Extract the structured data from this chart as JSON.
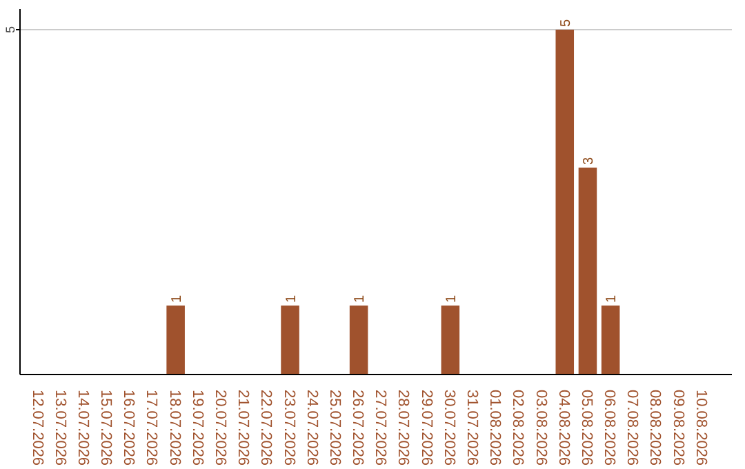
{
  "chart_data": {
    "type": "bar",
    "categories": [
      "12.07.2026",
      "13.07.2026",
      "14.07.2026",
      "15.07.2026",
      "16.07.2026",
      "17.07.2026",
      "18.07.2026",
      "19.07.2026",
      "20.07.2026",
      "21.07.2026",
      "22.07.2026",
      "23.07.2026",
      "24.07.2026",
      "25.07.2026",
      "26.07.2026",
      "27.07.2026",
      "28.07.2026",
      "29.07.2026",
      "30.07.2026",
      "31.07.2026",
      "01.08.2026",
      "02.08.2026",
      "03.08.2026",
      "04.08.2026",
      "05.08.2026",
      "06.08.2026",
      "07.08.2026",
      "08.08.2026",
      "09.08.2026",
      "10.08.2026"
    ],
    "values": [
      0,
      0,
      0,
      0,
      0,
      0,
      1,
      0,
      0,
      0,
      0,
      1,
      0,
      0,
      1,
      0,
      0,
      0,
      1,
      0,
      0,
      0,
      0,
      5,
      3,
      1,
      0,
      0,
      0,
      0
    ],
    "value_labels": [
      null,
      null,
      null,
      null,
      null,
      null,
      "1",
      null,
      null,
      null,
      null,
      "1",
      null,
      null,
      "1",
      null,
      null,
      null,
      "1",
      null,
      null,
      null,
      null,
      "5",
      "3",
      "1",
      null,
      null,
      null,
      null
    ],
    "color": "#a0522d",
    "ylim": [
      0,
      5.3
    ],
    "yticks": [
      5
    ],
    "grid": "y"
  }
}
